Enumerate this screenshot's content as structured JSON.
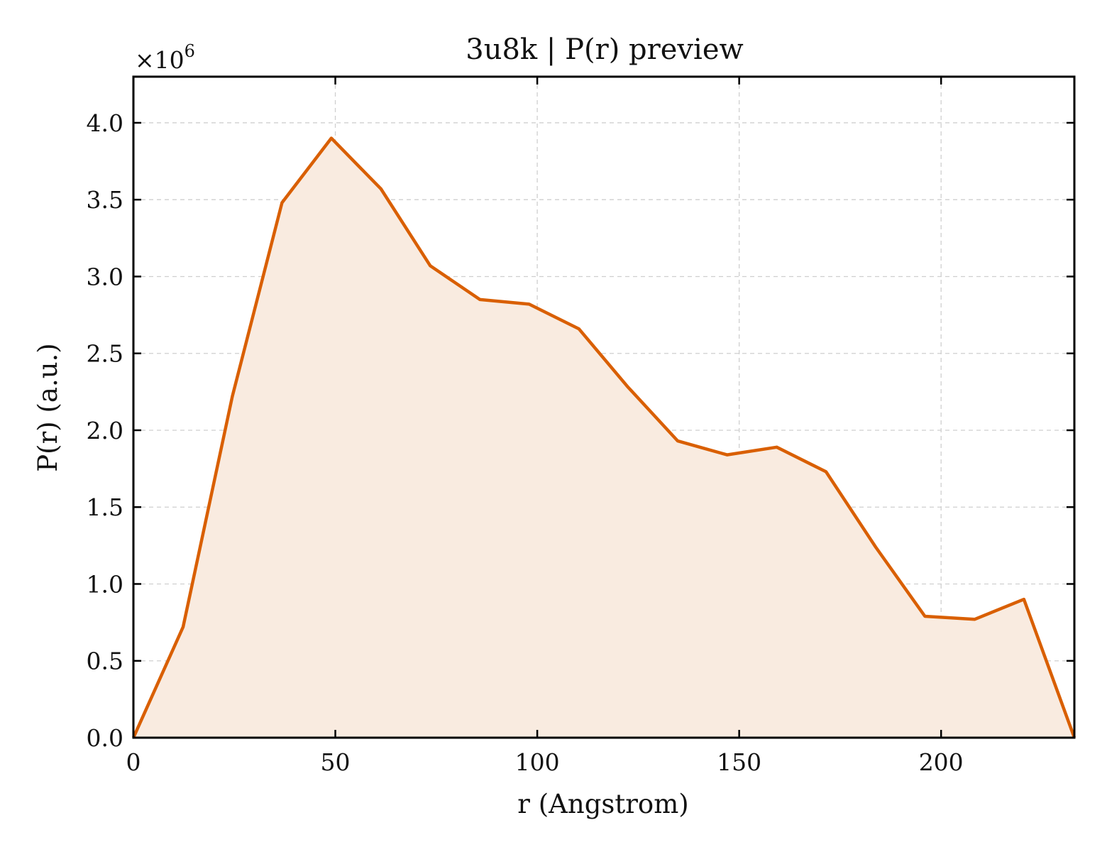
{
  "chart_data": {
    "type": "area",
    "title": "3u8k | P(r) preview",
    "xlabel": "r (Angstrom)",
    "ylabel": "P(r) (a.u.)",
    "y_multiplier_text": "×10",
    "y_multiplier_exponent": "6",
    "xlim": [
      0,
      233
    ],
    "ylim": [
      0,
      4.3
    ],
    "xticks": [
      0,
      50,
      100,
      150,
      200
    ],
    "yticks": [
      0.0,
      0.5,
      1.0,
      1.5,
      2.0,
      2.5,
      3.0,
      3.5,
      4.0
    ],
    "ytick_labels": [
      "0.0",
      "0.5",
      "1.0",
      "1.5",
      "2.0",
      "2.5",
      "3.0",
      "3.5",
      "4.0"
    ],
    "grid": true,
    "line_color": "#d95f02",
    "fill_color": "#f9ebe0",
    "series": [
      {
        "x": [
          0,
          12.3,
          24.5,
          36.8,
          49.0,
          61.3,
          73.5,
          85.8,
          98.0,
          110.3,
          122.5,
          134.8,
          147.0,
          159.3,
          171.5,
          183.8,
          196.0,
          208.3,
          220.5,
          233.0
        ],
        "values": [
          0.0,
          0.72,
          2.22,
          3.48,
          3.9,
          3.57,
          3.07,
          2.85,
          2.82,
          2.66,
          2.28,
          1.93,
          1.84,
          1.89,
          1.73,
          1.24,
          0.79,
          0.77,
          0.9,
          0.0
        ]
      }
    ]
  }
}
